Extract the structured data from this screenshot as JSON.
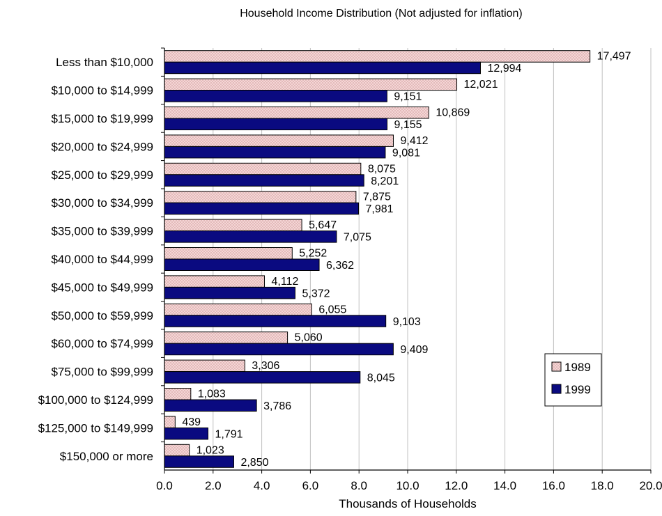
{
  "chart_data": {
    "type": "bar",
    "orientation": "horizontal",
    "title": "Household Income Distribution (Not adjusted for inflation)",
    "xlabel": "Thousands of Households",
    "ylabel": "",
    "xlim": [
      0,
      20
    ],
    "x_ticks": [
      "0.0",
      "2.0",
      "4.0",
      "6.0",
      "8.0",
      "10.0",
      "12.0",
      "14.0",
      "16.0",
      "18.0",
      "20.0"
    ],
    "grid": "vertical",
    "legend_position": "right",
    "categories": [
      "Less than $10,000",
      "$10,000 to $14,999",
      "$15,000 to $19,999",
      "$20,000 to $24,999",
      "$25,000 to $29,999",
      "$30,000 to $34,999",
      "$35,000 to $39,999",
      "$40,000 to $44,999",
      "$45,000 to $49,999",
      "$50,000 to $59,999",
      "$60,000 to $74,999",
      "$75,000 to $99,999",
      "$100,000 to $124,999",
      "$125,000 to $149,999",
      "$150,000 or more"
    ],
    "series": [
      {
        "name": "1989",
        "color": "#f4d6d6",
        "dot_color": "#c08080",
        "values": [
          17.497,
          12.021,
          10.869,
          9.412,
          8.075,
          7.875,
          5.647,
          5.252,
          4.112,
          6.055,
          5.06,
          3.306,
          1.083,
          0.439,
          1.023
        ],
        "labels": [
          "17,497",
          "12,021",
          "10,869",
          "9,412",
          "8,075",
          "7,875",
          "5,647",
          "5,252",
          "4,112",
          "6,055",
          "5,060",
          "3,306",
          "1,083",
          "439",
          "1,023"
        ]
      },
      {
        "name": "1999",
        "color": "#0a0a80",
        "values": [
          12.994,
          9.151,
          9.155,
          9.081,
          8.201,
          7.981,
          7.075,
          6.362,
          5.372,
          9.103,
          9.409,
          8.045,
          3.786,
          1.791,
          2.85
        ],
        "labels": [
          "12,994",
          "9,151",
          "9,155",
          "9,081",
          "8,201",
          "7,981",
          "7,075",
          "6,362",
          "5,372",
          "9,103",
          "9,409",
          "8,045",
          "3,786",
          "1,791",
          "2,850"
        ]
      }
    ]
  }
}
